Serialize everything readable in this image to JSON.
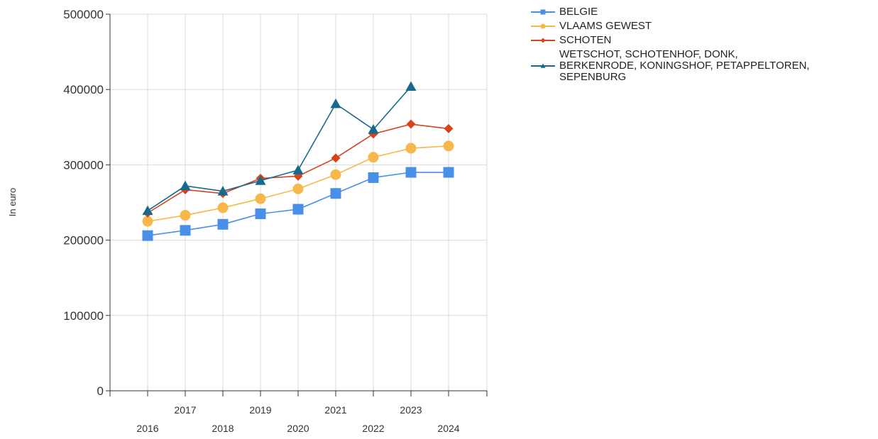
{
  "chart_data": {
    "type": "line",
    "ylabel": "In euro",
    "xlabel": "",
    "categories": [
      "2016",
      "2017",
      "2018",
      "2019",
      "2020",
      "2021",
      "2022",
      "2023",
      "2024"
    ],
    "ylim": [
      0,
      500000
    ],
    "yticks": [
      "0",
      "100000",
      "200000",
      "300000",
      "400000",
      "500000"
    ],
    "grid": true,
    "legend_position": "top-right",
    "series": [
      {
        "name": "BELGIE",
        "color": "#4a8fe7",
        "marker": "square",
        "values": [
          206000,
          213000,
          221000,
          235000,
          241000,
          262000,
          283000,
          290000,
          290000
        ]
      },
      {
        "name": "VLAAMS GEWEST",
        "color": "#f7b84b",
        "marker": "circle",
        "values": [
          225000,
          233000,
          243000,
          255000,
          268000,
          287000,
          310000,
          322000,
          325000
        ]
      },
      {
        "name": "SCHOTEN",
        "color": "#d5441c",
        "marker": "diamond",
        "values": [
          236000,
          267000,
          262000,
          282000,
          285000,
          309000,
          341000,
          354000,
          348000
        ]
      },
      {
        "name": "WETSCHOT, SCHOTENHOF, DONK, BERKENRODE, KONINGSHOF, PETAPPELTOREN, SEPENBURG",
        "legend_lines": [
          "WETSCHOT, SCHOTENHOF, DONK,",
          "BERKENRODE, KONINGSHOF, PETAPPELTOREN,",
          "SEPENBURG"
        ],
        "color": "#176a8c",
        "marker": "triangle",
        "values": [
          239000,
          272000,
          265000,
          279000,
          293000,
          381000,
          347000,
          404000,
          null
        ]
      }
    ]
  }
}
